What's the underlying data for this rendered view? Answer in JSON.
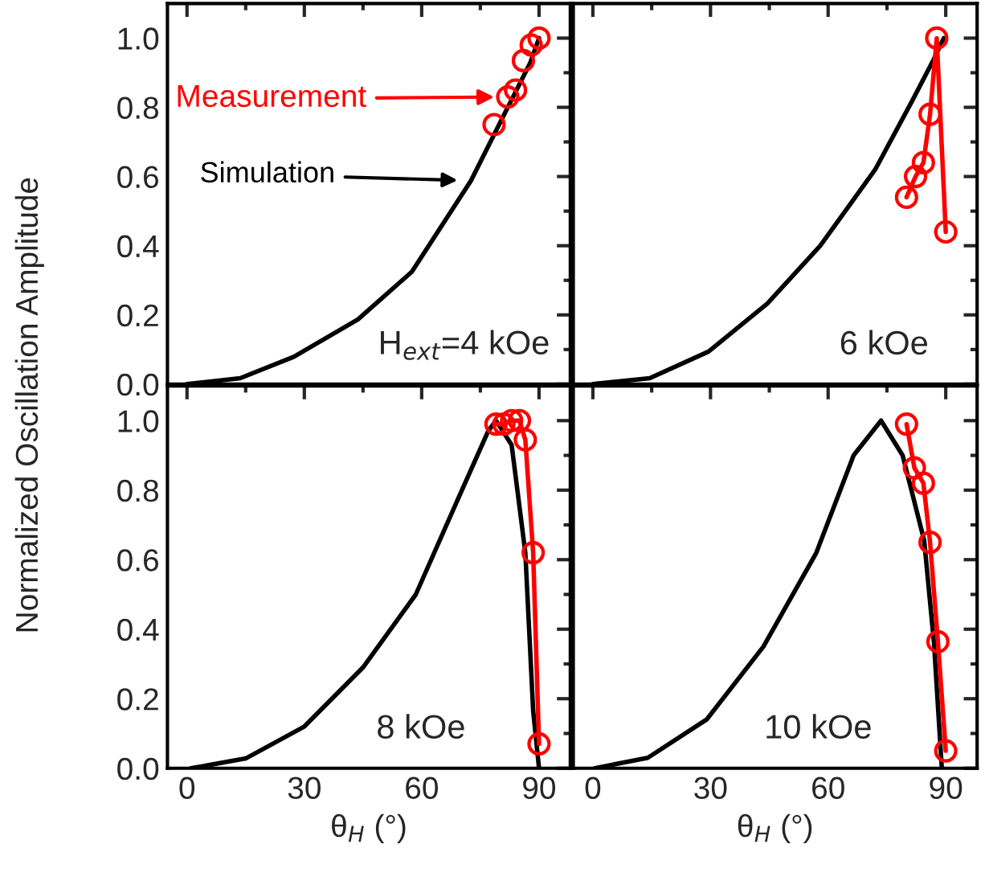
{
  "chart_data": [
    {
      "type": "line",
      "ylabel": "Normalized Oscillation Amplitude",
      "xlim": [
        -5,
        98
      ],
      "ylim": [
        0,
        1.1
      ],
      "tick_labels": "y",
      "legend": "top left",
      "marker": "circle",
      "annotations": [
        "H$_{ext}$=4 kOe"
      ],
      "xticks": [
        0,
        {
          "value": 15,
          "label": null
        },
        30,
        {
          "value": 45,
          "label": null
        },
        60,
        {
          "value": 75,
          "label": null
        },
        90
      ],
      "yticks": [
        {
          "value": 0,
          "label": "0.0"
        },
        {
          "value": 0.1,
          "label": null
        },
        0.2,
        {
          "value": 0.3,
          "label": null
        },
        0.4,
        {
          "value": 0.5,
          "label": null
        },
        0.6,
        {
          "value": 0.7,
          "label": null
        },
        0.8,
        {
          "value": 0.9,
          "label": null
        },
        {
          "value": 1,
          "label": "1.0"
        }
      ],
      "series": [
        {
          "name": "Simulation",
          "color": "#000000",
          "marker": "none",
          "x": [
            0,
            13.6,
            27.3,
            43.7,
            57.5,
            72.6,
            80.8,
            87.7,
            90
          ],
          "values": [
            0,
            0.017,
            0.079,
            0.187,
            0.325,
            0.588,
            0.773,
            0.927,
            1.0
          ]
        },
        {
          "name": "Measurement",
          "color": "#ff0000",
          "type": "scatter",
          "x": [
            78.5,
            82,
            84,
            86,
            88,
            90
          ],
          "values": [
            0.75,
            0.83,
            0.85,
            0.935,
            0.98,
            1.0
          ]
        }
      ]
    },
    {
      "type": "line",
      "xlim": [
        -5,
        98
      ],
      "ylim": [
        0,
        1.1
      ],
      "tick_labels": false,
      "marker": "circle",
      "annotations": [
        "6 kOe"
      ],
      "xticks": [
        0,
        {
          "value": 15,
          "label": null
        },
        30,
        {
          "value": 45,
          "label": null
        },
        60,
        {
          "value": 75,
          "label": null
        },
        90
      ],
      "yticks": [
        0,
        {
          "value": 0.1,
          "label": null
        },
        0.2,
        {
          "value": 0.3,
          "label": null
        },
        0.4,
        {
          "value": 0.5,
          "label": null
        },
        0.6,
        {
          "value": 0.7,
          "label": null
        },
        0.8,
        {
          "value": 0.9,
          "label": null
        },
        1
      ],
      "series": [
        {
          "color": "#000000",
          "marker": "none",
          "x": [
            0,
            14.5,
            29.5,
            44.5,
            58,
            72,
            81.5,
            87,
            89.5
          ],
          "values": [
            0,
            0.017,
            0.094,
            0.233,
            0.4,
            0.62,
            0.82,
            0.94,
            1.0
          ]
        },
        {
          "color": "#ff0000",
          "x": [
            80,
            82.3,
            84.3,
            86,
            87.7,
            90
          ],
          "values": [
            0.54,
            0.6,
            0.64,
            0.78,
            1.0,
            0.44
          ]
        }
      ]
    },
    {
      "type": "line",
      "xlabel": "θ$_{H}$ (°)",
      "xlim": [
        -5,
        98
      ],
      "ylim": [
        0,
        1.1
      ],
      "marker": "circle",
      "annotations": [
        "8 kOe"
      ],
      "xticks": [
        0,
        {
          "value": 15,
          "label": null
        },
        30,
        {
          "value": 45,
          "label": null
        },
        60,
        {
          "value": 75,
          "label": null
        },
        90
      ],
      "yticks": [
        {
          "value": 0,
          "label": "0.0"
        },
        {
          "value": 0.1,
          "label": null
        },
        0.2,
        {
          "value": 0.3,
          "label": null
        },
        0.4,
        {
          "value": 0.5,
          "label": null
        },
        0.6,
        {
          "value": 0.7,
          "label": null
        },
        0.8,
        {
          "value": 0.9,
          "label": null
        },
        {
          "value": 1,
          "label": "1.0"
        }
      ],
      "series": [
        {
          "color": "#000000",
          "marker": "none",
          "x": [
            1,
            15,
            30,
            45,
            58.5,
            69.5,
            77,
            79,
            83,
            86.5,
            88.5,
            90
          ],
          "values": [
            0,
            0.028,
            0.12,
            0.29,
            0.5,
            0.78,
            0.97,
            1.0,
            0.93,
            0.62,
            0.165,
            0
          ]
        },
        {
          "color": "#ff0000",
          "x": [
            79,
            81,
            83,
            85,
            86.5,
            88.5,
            90
          ],
          "values": [
            0.99,
            0.99,
            1.0,
            1.0,
            0.945,
            0.62,
            0.07
          ]
        }
      ]
    },
    {
      "type": "line",
      "xlabel": "θ$_{H}$ (°)",
      "xlim": [
        -5,
        98
      ],
      "ylim": [
        0,
        1.1
      ],
      "tick_labels": "x",
      "marker": "circle",
      "annotations": [
        "10 kOe"
      ],
      "xticks": [
        0,
        {
          "value": 15,
          "label": null
        },
        30,
        {
          "value": 45,
          "label": null
        },
        60,
        {
          "value": 75,
          "label": null
        },
        90
      ],
      "yticks": [
        0,
        {
          "value": 0.1,
          "label": null
        },
        0.2,
        {
          "value": 0.3,
          "label": null
        },
        0.4,
        {
          "value": 0.5,
          "label": null
        },
        0.6,
        {
          "value": 0.7,
          "label": null
        },
        0.8,
        {
          "value": 0.9,
          "label": null
        },
        1
      ],
      "series": [
        {
          "color": "#000000",
          "marker": "none",
          "x": [
            0.5,
            14,
            29,
            43.5,
            57,
            66.5,
            73.5,
            79,
            84.5,
            87,
            89
          ],
          "values": [
            0,
            0.03,
            0.14,
            0.35,
            0.62,
            0.9,
            1.0,
            0.9,
            0.655,
            0.36,
            0
          ]
        },
        {
          "color": "#ff0000",
          "x": [
            80,
            82,
            84.3,
            86,
            88,
            90
          ],
          "values": [
            0.99,
            0.864,
            0.82,
            0.65,
            0.364,
            0.05
          ]
        }
      ]
    }
  ]
}
